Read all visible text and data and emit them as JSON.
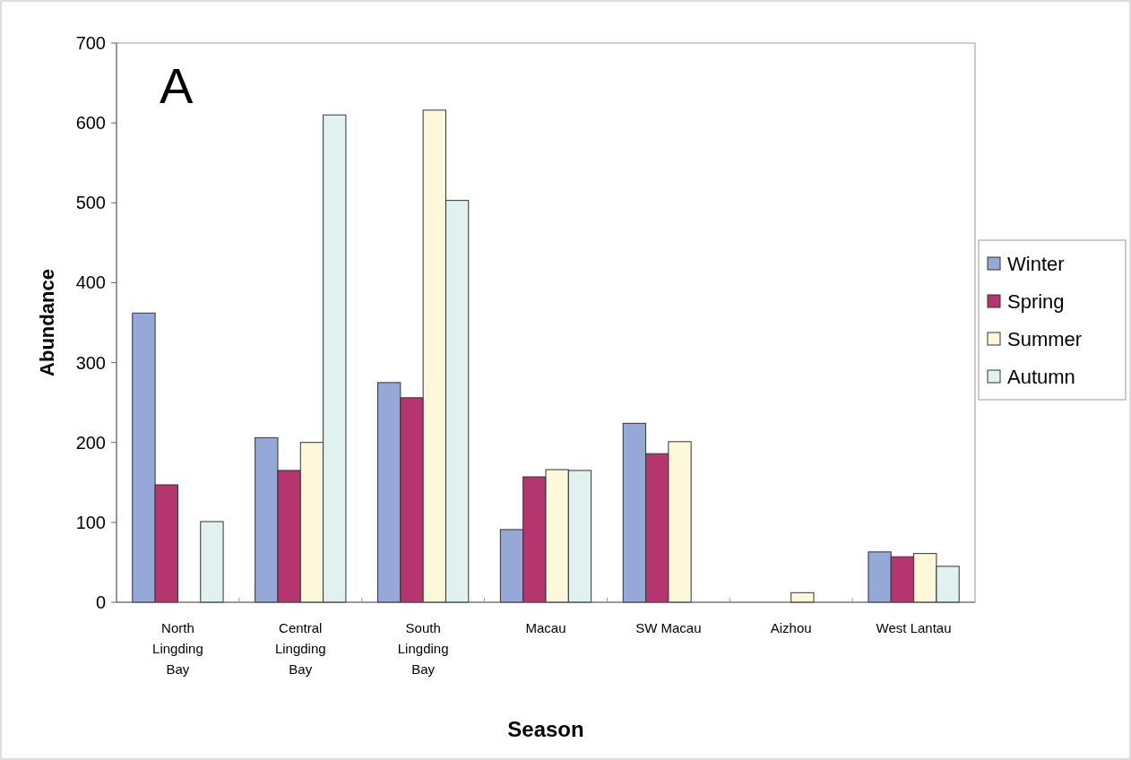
{
  "chart_data": {
    "type": "bar",
    "xlabel": "Season",
    "ylabel": "Abundance",
    "annotations": [
      "A"
    ],
    "categories": [
      "North Lingding Bay",
      "Central Lingding Bay",
      "South Lingding Bay",
      "Macau",
      "SW Macau",
      "Aizhou",
      "West Lantau"
    ],
    "series": [
      {
        "name": "Winter",
        "color": "#96a8d8",
        "values": [
          362,
          206,
          275,
          91,
          224,
          null,
          63
        ]
      },
      {
        "name": "Spring",
        "color": "#b5356f",
        "values": [
          147,
          165,
          256,
          157,
          186,
          null,
          57
        ]
      },
      {
        "name": "Summer",
        "color": "#fdf8da",
        "values": [
          null,
          200,
          616,
          166,
          201,
          12,
          61
        ]
      },
      {
        "name": "Autumn",
        "color": "#e0f1f0",
        "values": [
          101,
          610,
          503,
          165,
          null,
          null,
          45
        ]
      }
    ],
    "ylim": [
      0,
      700
    ],
    "yticks": [
      0,
      100,
      200,
      300,
      400,
      500,
      600,
      700
    ],
    "legend": "right",
    "grid": false
  }
}
